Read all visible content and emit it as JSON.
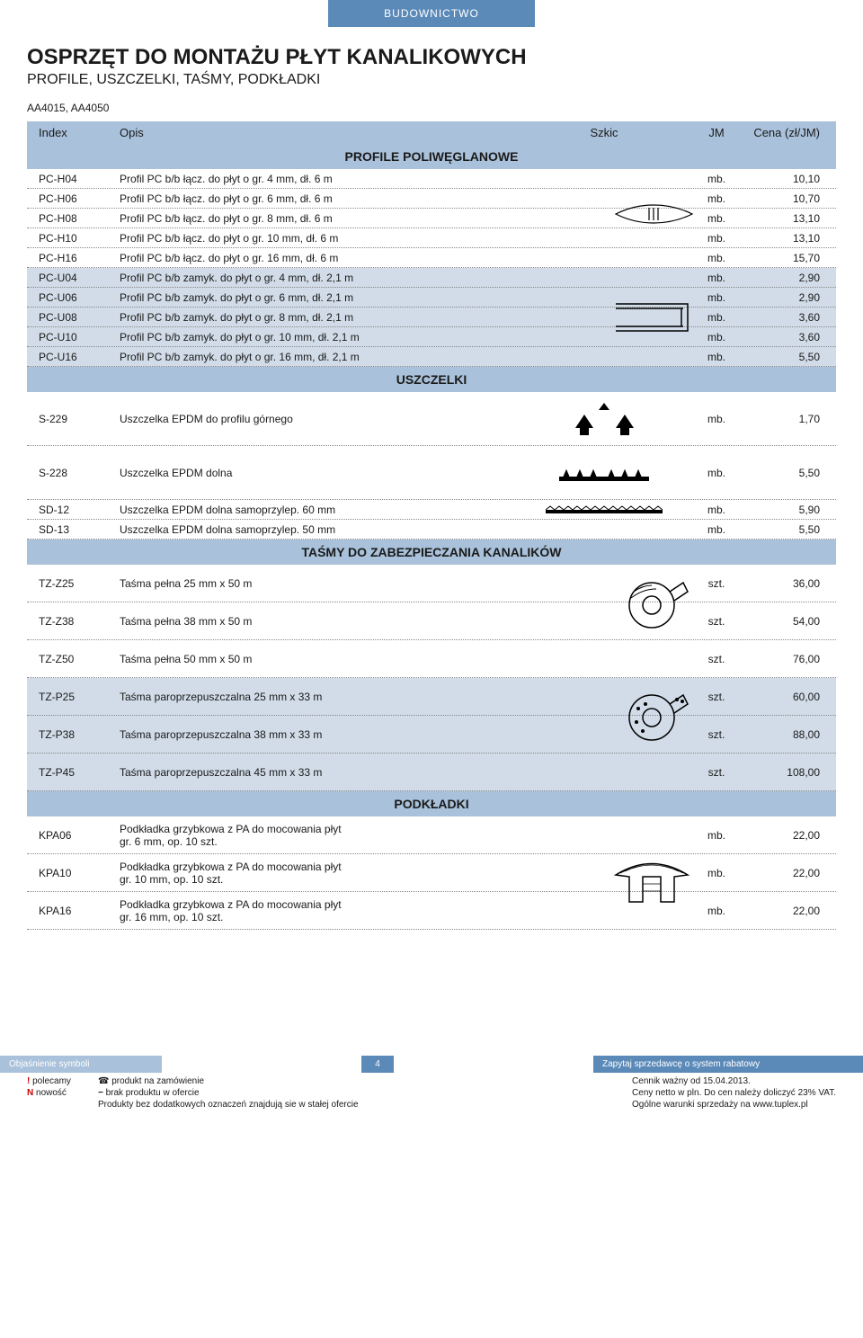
{
  "category": "BUDOWNICTWO",
  "title": "OSPRZĘT DO MONTAŻU PŁYT KANALIKOWYCH",
  "subtitle": "PROFILE, USZCZELKI, TAŚMY, PODKŁADKI",
  "product_codes": "AA4015, AA4050",
  "columns": {
    "index": "Index",
    "opis": "Opis",
    "szkic": "Szkic",
    "jm": "JM",
    "cena": "Cena (zł/JM)"
  },
  "sections": {
    "profile": "PROFILE POLIWĘGLANOWE",
    "uszczelki": "USZCZELKI",
    "tasmy": "TAŚMY DO ZABEZPIECZANIA KANALIKÓW",
    "podkladki": "PODKŁADKI"
  },
  "profile_rows": [
    {
      "idx": "PC-H04",
      "opis": "Profil PC b/b łącz. do płyt o gr. 4 mm, dł. 6 m",
      "jm": "mb.",
      "cena": "10,10",
      "hl": false
    },
    {
      "idx": "PC-H06",
      "opis": "Profil PC b/b łącz. do płyt o gr. 6 mm, dł. 6 m",
      "jm": "mb.",
      "cena": "10,70",
      "hl": false
    },
    {
      "idx": "PC-H08",
      "opis": "Profil PC b/b łącz. do płyt o gr. 8 mm, dł. 6 m",
      "jm": "mb.",
      "cena": "13,10",
      "hl": false
    },
    {
      "idx": "PC-H10",
      "opis": "Profil PC b/b łącz. do płyt o gr. 10 mm, dł. 6 m",
      "jm": "mb.",
      "cena": "13,10",
      "hl": false
    },
    {
      "idx": "PC-H16",
      "opis": "Profil PC b/b łącz. do płyt o gr. 16 mm, dł. 6 m",
      "jm": "mb.",
      "cena": "15,70",
      "hl": false
    },
    {
      "idx": "PC-U04",
      "opis": "Profil PC b/b zamyk. do płyt o gr. 4 mm, dł. 2,1 m",
      "jm": "mb.",
      "cena": "2,90",
      "hl": true
    },
    {
      "idx": "PC-U06",
      "opis": "Profil PC b/b zamyk. do płyt o gr. 6 mm, dł. 2,1 m",
      "jm": "mb.",
      "cena": "2,90",
      "hl": true
    },
    {
      "idx": "PC-U08",
      "opis": "Profil PC b/b zamyk. do płyt o gr. 8 mm, dł. 2,1 m",
      "jm": "mb.",
      "cena": "3,60",
      "hl": true
    },
    {
      "idx": "PC-U10",
      "opis": "Profil PC b/b zamyk. do płyt o gr. 10 mm, dł. 2,1 m",
      "jm": "mb.",
      "cena": "3,60",
      "hl": true
    },
    {
      "idx": "PC-U16",
      "opis": "Profil PC b/b zamyk. do płyt o gr. 16 mm, dł. 2,1 m",
      "jm": "mb.",
      "cena": "5,50",
      "hl": true
    }
  ],
  "uszczelki_rows": [
    {
      "idx": "S-229",
      "opis": "Uszczelka EPDM do profilu górnego",
      "jm": "mb.",
      "cena": "1,70",
      "svg": "gasket-top",
      "tall": true
    },
    {
      "idx": "S-228",
      "opis": "Uszczelka EPDM dolna",
      "jm": "mb.",
      "cena": "5,50",
      "svg": "gasket-bottom",
      "tall": true
    },
    {
      "idx": "SD-12",
      "opis": "Uszczelka EPDM dolna samoprzylep. 60 mm",
      "jm": "mb.",
      "cena": "5,90",
      "svg": "gasket-strip"
    },
    {
      "idx": "SD-13",
      "opis": "Uszczelka EPDM dolna samoprzylep. 50 mm",
      "jm": "mb.",
      "cena": "5,50",
      "svg": ""
    }
  ],
  "tasmy_rows": [
    {
      "idx": "TZ-Z25",
      "opis": "Taśma pełna 25 mm x 50 m",
      "jm": "szt.",
      "cena": "36,00",
      "hl": false
    },
    {
      "idx": "TZ-Z38",
      "opis": "Taśma pełna 38 mm x 50 m",
      "jm": "szt.",
      "cena": "54,00",
      "hl": false
    },
    {
      "idx": "TZ-Z50",
      "opis": "Taśma pełna 50 mm x 50 m",
      "jm": "szt.",
      "cena": "76,00",
      "hl": false
    },
    {
      "idx": "TZ-P25",
      "opis": "Taśma paroprzepuszczalna 25 mm x 33 m",
      "jm": "szt.",
      "cena": "60,00",
      "hl": true
    },
    {
      "idx": "TZ-P38",
      "opis": "Taśma paroprzepuszczalna 38 mm x 33 m",
      "jm": "szt.",
      "cena": "88,00",
      "hl": true
    },
    {
      "idx": "TZ-P45",
      "opis": "Taśma paroprzepuszczalna 45 mm x 33 m",
      "jm": "szt.",
      "cena": "108,00",
      "hl": true
    }
  ],
  "podkladki_rows": [
    {
      "idx": "KPA06",
      "opis": "Podkładka grzybkowa z PA do mocowania płyt\ngr. 6 mm, op. 10 szt.",
      "jm": "mb.",
      "cena": "22,00"
    },
    {
      "idx": "KPA10",
      "opis": "Podkładka grzybkowa z PA do mocowania płyt\ngr. 10 mm, op. 10 szt.",
      "jm": "mb.",
      "cena": "22,00"
    },
    {
      "idx": "KPA16",
      "opis": "Podkładka grzybkowa z PA do mocowania płyt\ngr. 16 mm, op. 10 szt.",
      "jm": "mb.",
      "cena": "22,00"
    }
  ],
  "footer": {
    "left": "Objaśnienie symboli",
    "page": "4",
    "right": "Zapytaj sprzedawcę o system rabatowy",
    "legend": {
      "polecamy": "polecamy",
      "nowosc": "nowość",
      "zamowienie": "produkt na zamówienie",
      "brak": "brak produktu w ofercie",
      "stala": "Produkty bez dodatkowych oznaczeń znajdują sie w stałej ofercie",
      "cennik": "Cennik ważny od 15.04.2013.",
      "ceny": "Ceny netto w pln. Do cen należy doliczyć 23% VAT.",
      "warunki": "Ogólne warunki sprzedaży na www.tuplex.pl"
    }
  }
}
